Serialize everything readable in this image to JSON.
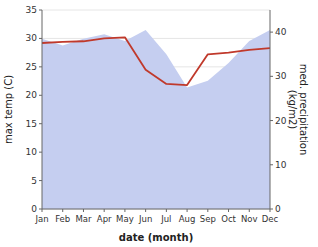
{
  "chart_data": {
    "type": "line",
    "xlabel": "date (month)",
    "ylabel": "max temp (C)",
    "y2label": "med. precipitation\n(kg/m2)",
    "categories": [
      "Jan",
      "Feb",
      "Mar",
      "Apr",
      "May",
      "Jun",
      "Jul",
      "Aug",
      "Sep",
      "Oct",
      "Nov",
      "Dec"
    ],
    "series": [
      {
        "type": "area",
        "axis": "y2",
        "color": "#c5cef0",
        "values": [
          38.5,
          37.0,
          38.5,
          39.5,
          38.0,
          40.5,
          35.0,
          27.5,
          29.0,
          33.0,
          38.0,
          40.5
        ]
      },
      {
        "type": "line",
        "color": "#c0392b",
        "values": [
          29.2,
          29.4,
          29.5,
          30.0,
          30.2,
          24.5,
          22.0,
          21.8,
          27.2,
          27.5,
          28.0,
          28.3
        ]
      }
    ],
    "ylim": [
      0,
      35
    ],
    "yticks": [
      0,
      5,
      10,
      15,
      20,
      25,
      30,
      35
    ],
    "y2lim": [
      0,
      45
    ],
    "y2ticks": [
      0,
      10,
      20,
      30,
      40
    ]
  }
}
